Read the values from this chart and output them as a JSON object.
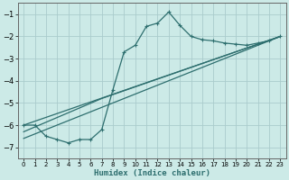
{
  "xlabel": "Humidex (Indice chaleur)",
  "background_color": "#cceae7",
  "grid_color": "#aacccc",
  "line_color": "#2d6e6e",
  "xlim": [
    -0.5,
    23.5
  ],
  "ylim": [
    -7.5,
    -0.5
  ],
  "yticks": [
    -7,
    -6,
    -5,
    -4,
    -3,
    -2,
    -1
  ],
  "xticks": [
    0,
    1,
    2,
    3,
    4,
    5,
    6,
    7,
    8,
    9,
    10,
    11,
    12,
    13,
    14,
    15,
    16,
    17,
    18,
    19,
    20,
    21,
    22,
    23
  ],
  "series1_x": [
    0,
    1,
    2,
    3,
    4,
    5,
    6,
    7,
    8,
    9,
    10,
    11,
    12,
    13,
    14,
    15,
    16,
    17,
    18,
    19,
    20,
    21,
    22,
    23
  ],
  "series1_y": [
    -6.0,
    -6.0,
    -6.5,
    -6.65,
    -6.8,
    -6.65,
    -6.65,
    -6.2,
    -4.4,
    -2.7,
    -2.4,
    -1.55,
    -1.4,
    -0.9,
    -1.5,
    -2.0,
    -2.15,
    -2.2,
    -2.3,
    -2.35,
    -2.4,
    -2.3,
    -2.2,
    -2.0
  ],
  "series2_x": [
    0,
    23
  ],
  "series2_y": [
    -6.0,
    -2.0
  ],
  "series3_x": [
    0,
    7,
    23
  ],
  "series3_y": [
    -6.3,
    -4.8,
    -2.0
  ],
  "series4_x": [
    0,
    23
  ],
  "series4_y": [
    -6.6,
    -2.0
  ]
}
